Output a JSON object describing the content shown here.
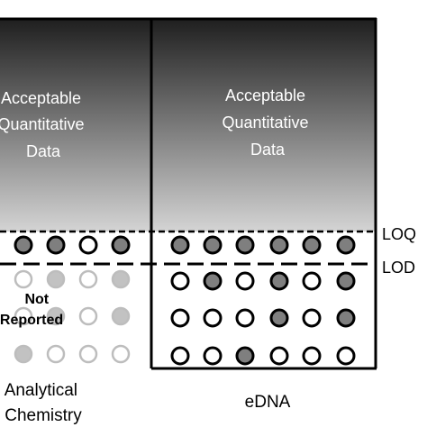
{
  "panels": {
    "left": {
      "zone_label": [
        "Acceptable",
        "Quantitative",
        "Data"
      ],
      "not_reported_label": [
        "Not",
        "Reported"
      ],
      "category_label": [
        "Analytical",
        "Chemistry"
      ]
    },
    "right": {
      "zone_label": [
        "Acceptable",
        "Quantitative",
        "Data"
      ],
      "category_label": [
        "eDNA"
      ]
    }
  },
  "thresholds": {
    "upper": "LOQ",
    "lower": "LOD"
  },
  "markers": {
    "left_loq_row": [
      "filled",
      "filled",
      "open",
      "filled"
    ],
    "left_faded_rows": [
      [
        "open",
        "filled",
        "open",
        "filled"
      ],
      [
        "open",
        "filled",
        "open",
        "filled"
      ],
      [
        "filled",
        "open",
        "open",
        "open"
      ]
    ],
    "right_loq_row": [
      "filled",
      "filled",
      "filled",
      "filled",
      "filled",
      "filled"
    ],
    "right_rows": [
      [
        "open",
        "filled",
        "open",
        "filled",
        "open",
        "filled"
      ],
      [
        "open",
        "open",
        "open",
        "filled",
        "open",
        "filled"
      ],
      [
        "open",
        "open",
        "filled",
        "open",
        "open",
        "open"
      ]
    ]
  },
  "colors": {
    "gradient_top": "#1e1e1e",
    "gradient_bottom": "#d4d4d4",
    "marker_fill": "#7f7f7f",
    "marker_fill_faded": "#c2c2c2",
    "marker_stroke_faded": "#bdbdbd",
    "line": "#000000"
  }
}
